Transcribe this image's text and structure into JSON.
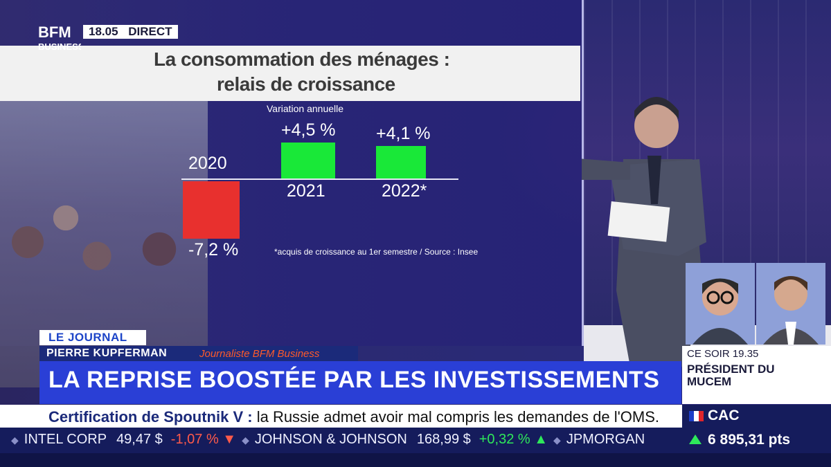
{
  "channel": {
    "logo_top": "BFM",
    "logo_bottom": "BUSINESS",
    "time": "18.05",
    "live": "DIRECT"
  },
  "chart": {
    "title_line1": "La consommation des ménages :",
    "title_line2": "relais de croissance",
    "subtitle": "Variation annuelle",
    "footnote": "*acquis de croissance au 1er semestre / Source : Insee",
    "colors": {
      "negative": "#e8302e",
      "positive": "#19e838"
    }
  },
  "chart_data": {
    "type": "bar",
    "title": "La consommation des ménages : relais de croissance",
    "subtitle": "Variation annuelle",
    "categories": [
      "2020",
      "2021",
      "2022*"
    ],
    "values": [
      -7.2,
      4.5,
      4.1
    ],
    "value_labels": [
      "-7,2 %",
      "+4,5 %",
      "+4,1 %"
    ],
    "unit": "%",
    "ylim": [
      -8,
      5
    ],
    "grid": false
  },
  "lower_third": {
    "section": "LE JOURNAL",
    "speaker_name": "PIERRE KUPFERMAN",
    "speaker_role": "Journaliste BFM Business",
    "headline": "LA REPRISE BOOSTÉE PAR LES INVESTISSEMENTS"
  },
  "promo": {
    "time": "CE SOIR 19.35",
    "title_line1": "PRÉSIDENT DU",
    "title_line2": "MUCEM"
  },
  "news": {
    "topic": "Certification de Spoutnik V :",
    "text": "la Russie admet avoir mal compris les demandes de l'OMS."
  },
  "ticker": [
    {
      "name": "INTEL CORP",
      "price": "49,47 $",
      "change": "-1,07 %",
      "direction": "down"
    },
    {
      "name": "JOHNSON & JOHNSON",
      "price": "168,99 $",
      "change": "+0,32 %",
      "direction": "up"
    },
    {
      "name": "JPMORGAN",
      "price": "",
      "change": "",
      "direction": ""
    }
  ],
  "market": {
    "index_name": "CAC",
    "value": "6 895,31 pts",
    "direction": "up"
  }
}
